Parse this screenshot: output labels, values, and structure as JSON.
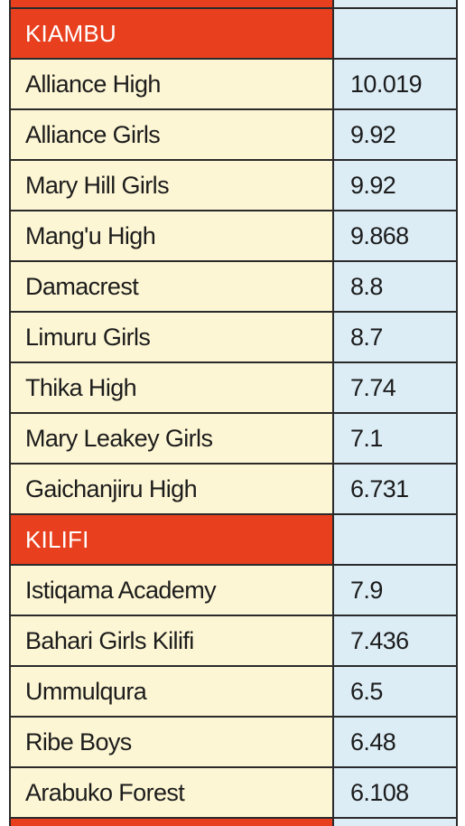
{
  "colors": {
    "county_header_bg": "#e8401f",
    "school_name_bg": "#fdf6d4",
    "score_bg": "#dcedf6",
    "text": "#1c1c1c",
    "county_text": "#ffffff"
  },
  "counties": [
    {
      "name": "KIAMBU",
      "schools": [
        {
          "name": "Alliance High",
          "score": "10.019"
        },
        {
          "name": "Alliance Girls",
          "score": "9.92"
        },
        {
          "name": "Mary Hill Girls",
          "score": "9.92"
        },
        {
          "name": "Mang'u High",
          "score": "9.868"
        },
        {
          "name": "Damacrest",
          "score": "8.8"
        },
        {
          "name": "Limuru Girls",
          "score": "8.7"
        },
        {
          "name": "Thika High",
          "score": "7.74"
        },
        {
          "name": "Mary Leakey Girls",
          "score": "7.1"
        },
        {
          "name": "Gaichanjiru High",
          "score": "6.731"
        }
      ]
    },
    {
      "name": "KILIFI",
      "schools": [
        {
          "name": "Istiqama Academy",
          "score": "7.9"
        },
        {
          "name": "Bahari Girls Kilifi",
          "score": "7.436"
        },
        {
          "name": "Ummulqura",
          "score": "6.5"
        },
        {
          "name": "Ribe Boys",
          "score": "6.48"
        },
        {
          "name": "Arabuko Forest",
          "score": "6.108"
        }
      ]
    }
  ]
}
